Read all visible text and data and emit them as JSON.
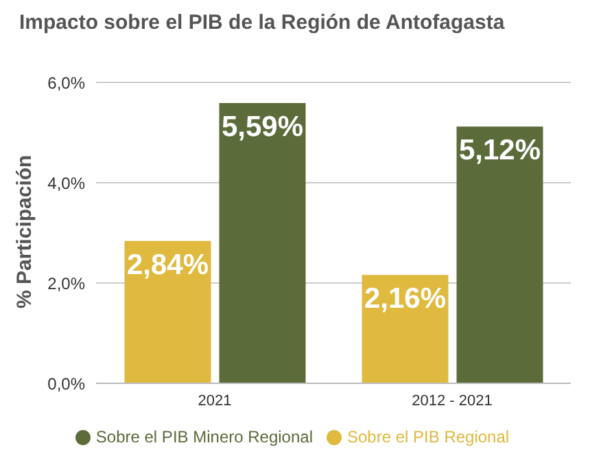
{
  "chart_data": {
    "type": "bar",
    "title": "Impacto sobre el PIB de la Región de Antofagasta",
    "ylabel": "% Participación",
    "categories": [
      "2021",
      "2012 - 2021"
    ],
    "series": [
      {
        "name": "Sobre el PIB Regional",
        "color": "#e0b93f",
        "values": [
          2.84,
          2.16
        ],
        "value_labels": [
          "2,84%",
          "2,16%"
        ]
      },
      {
        "name": "Sobre el PIB Minero Regional",
        "color": "#5b6b3a",
        "values": [
          5.59,
          5.12
        ],
        "value_labels": [
          "5,59%",
          "5,12%"
        ]
      }
    ],
    "ylim": [
      0,
      6
    ],
    "yticks": [
      {
        "value": 0,
        "label": "0,0%"
      },
      {
        "value": 2,
        "label": "2,0%"
      },
      {
        "value": 4,
        "label": "4,0%"
      },
      {
        "value": 6,
        "label": "6,0%"
      }
    ],
    "grid": "y",
    "legend": "bottom"
  }
}
